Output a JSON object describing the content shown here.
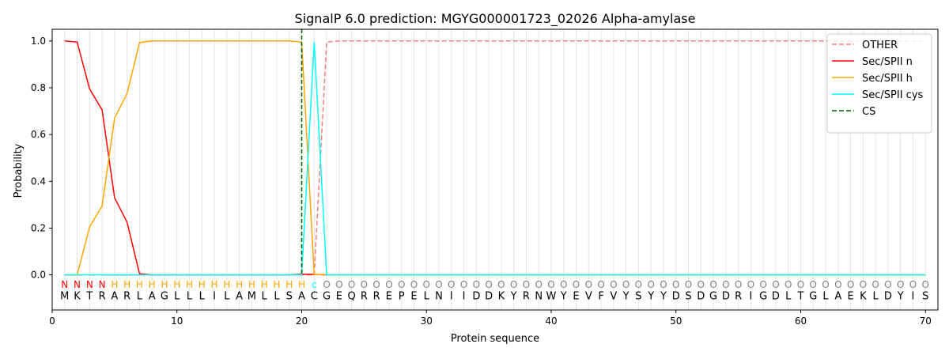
{
  "chart_data": {
    "type": "line",
    "title": "SignalP 6.0 prediction: MGYG000001723_02026 Alpha-amylase",
    "xlabel": "Protein sequence",
    "ylabel": "Probability",
    "xlim": [
      0,
      71
    ],
    "ylim": [
      -0.15,
      1.05
    ],
    "x_ticks": [
      0,
      10,
      20,
      30,
      40,
      50,
      60,
      70
    ],
    "y_ticks": [
      0.0,
      0.2,
      0.4,
      0.6,
      0.8,
      1.0
    ],
    "x_tick_labels": [
      "0",
      "10",
      "20",
      "30",
      "40",
      "50",
      "60",
      "70"
    ],
    "y_tick_labels": [
      "0.0",
      "0.2",
      "0.4",
      "0.6",
      "0.8",
      "1.0"
    ],
    "grid": "vertical lines at each residue",
    "legend_position": "top-right",
    "sequence": "MKTRARLAGLLLILAMLLSACGEQRREPELNIIDDKYRNWYEVFVYSYYDSDGDRIGDLTGLAEKLDYIS",
    "labels": "NNNNHHHHHHHHHHHHHHHHcOOOOOOOOOOOOOOOOOOOOOOOOOOOOOOOOOOOOOOOOOOOOOOOOO",
    "label_colors": {
      "N": "#ff0000",
      "H": "#ffa500",
      "c": "#00ffff",
      "O": "#808080"
    },
    "cleavage_site": 20,
    "series": [
      {
        "name": "OTHER",
        "color": "#f08080",
        "style": "dashed",
        "values": [
          0,
          0,
          0,
          0,
          0,
          0,
          0,
          0,
          0,
          0,
          0,
          0,
          0,
          0,
          0,
          0,
          0,
          0,
          0,
          0,
          0,
          0.995,
          1,
          1,
          1,
          1,
          1,
          1,
          1,
          1,
          1,
          1,
          1,
          1,
          1,
          1,
          1,
          1,
          1,
          1,
          1,
          1,
          1,
          1,
          1,
          1,
          1,
          1,
          1,
          1,
          1,
          1,
          1,
          1,
          1,
          1,
          1,
          1,
          1,
          1,
          1,
          1,
          1,
          1,
          1,
          1,
          1,
          1,
          1,
          1
        ]
      },
      {
        "name": "Sec/SPII n",
        "color": "#ff0000",
        "style": "solid",
        "values": [
          1.0,
          0.995,
          0.795,
          0.705,
          0.33,
          0.225,
          0.005,
          0,
          0,
          0,
          0,
          0,
          0,
          0,
          0,
          0,
          0,
          0,
          0,
          0.003,
          0.002,
          0,
          0,
          0,
          0,
          0,
          0,
          0,
          0,
          0,
          0,
          0,
          0,
          0,
          0,
          0,
          0,
          0,
          0,
          0,
          0,
          0,
          0,
          0,
          0,
          0,
          0,
          0,
          0,
          0,
          0,
          0,
          0,
          0,
          0,
          0,
          0,
          0,
          0,
          0,
          0,
          0,
          0,
          0,
          0,
          0,
          0,
          0,
          0,
          0
        ]
      },
      {
        "name": "Sec/SPII h",
        "color": "#ffa500",
        "style": "solid",
        "values": [
          0,
          0,
          0.205,
          0.295,
          0.67,
          0.775,
          0.993,
          1.0,
          1.0,
          1.0,
          1.0,
          1.0,
          1.0,
          1.0,
          1.0,
          1.0,
          1.0,
          1.0,
          1.0,
          0.995,
          0.002,
          0,
          0,
          0,
          0,
          0,
          0,
          0,
          0,
          0,
          0,
          0,
          0,
          0,
          0,
          0,
          0,
          0,
          0,
          0,
          0,
          0,
          0,
          0,
          0,
          0,
          0,
          0,
          0,
          0,
          0,
          0,
          0,
          0,
          0,
          0,
          0,
          0,
          0,
          0,
          0,
          0,
          0,
          0,
          0,
          0,
          0,
          0,
          0,
          0
        ]
      },
      {
        "name": "Sec/SPII cys",
        "color": "#00ffff",
        "style": "solid",
        "values": [
          0,
          0,
          0,
          0,
          0,
          0,
          0,
          0,
          0,
          0,
          0,
          0,
          0,
          0,
          0,
          0,
          0,
          0,
          0,
          0,
          0.995,
          0,
          0,
          0,
          0,
          0,
          0,
          0,
          0,
          0,
          0,
          0,
          0,
          0,
          0,
          0,
          0,
          0,
          0,
          0,
          0,
          0,
          0,
          0,
          0,
          0,
          0,
          0,
          0,
          0,
          0,
          0,
          0,
          0,
          0,
          0,
          0,
          0,
          0,
          0,
          0,
          0,
          0,
          0,
          0,
          0,
          0,
          0,
          0,
          0
        ]
      }
    ],
    "cs_line": {
      "name": "CS",
      "color": "#006400",
      "style": "dashed",
      "x": 20
    }
  }
}
